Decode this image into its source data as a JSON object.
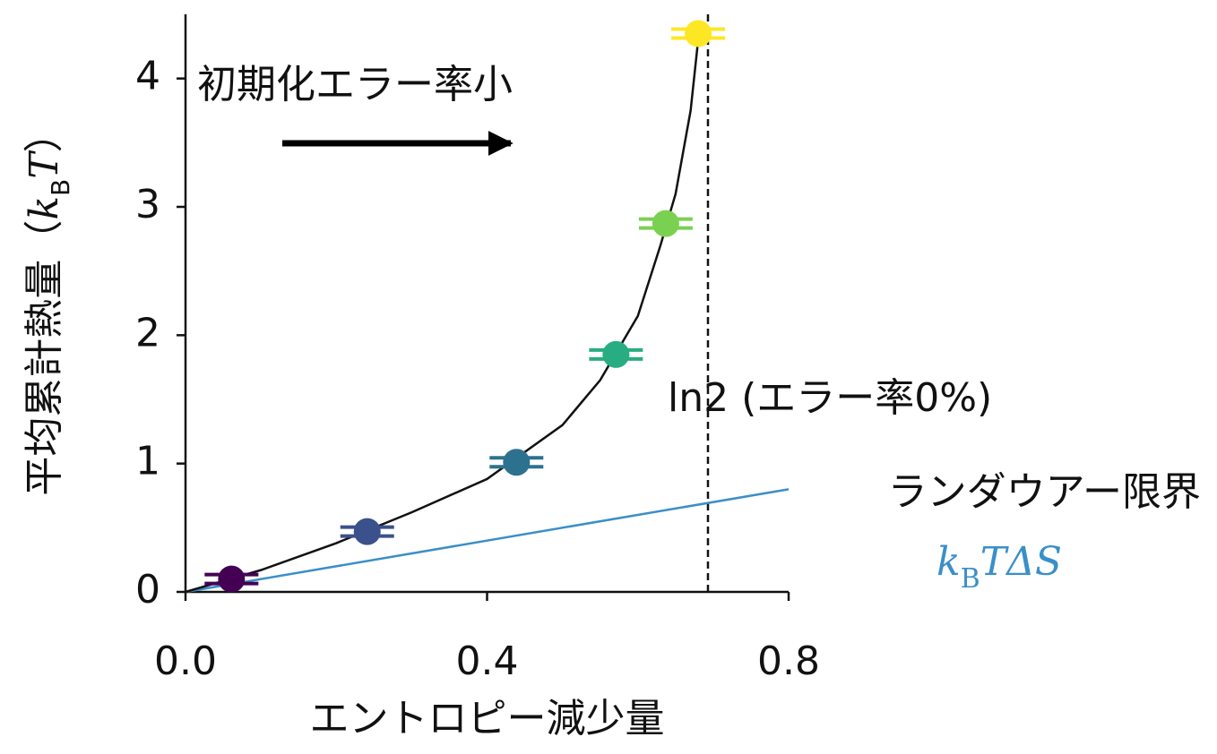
{
  "chart_data": {
    "type": "scatter",
    "xlabel": "エントロピー減少量",
    "ylabel_parts": [
      "平均累計熱量（",
      "k",
      "B",
      "T",
      "）"
    ],
    "xlim": [
      0,
      0.8
    ],
    "ylim": [
      0,
      4.5
    ],
    "xticks": [
      {
        "value": 0,
        "label": "0.0"
      },
      0.4,
      0.8
    ],
    "yticks": [
      0,
      1,
      2,
      3,
      4
    ],
    "points": {
      "x": [
        0.061,
        0.241,
        0.439,
        0.571,
        0.637,
        0.68
      ],
      "values": [
        0.1,
        0.47,
        1.01,
        1.85,
        2.87,
        4.35
      ],
      "yerr": [
        0.035,
        0.035,
        0.035,
        0.035,
        0.035,
        0.035
      ],
      "colors": [
        "#440154",
        "#3b518b",
        "#2c728e",
        "#27ad81",
        "#7ad151",
        "#fde725"
      ]
    },
    "curve": {
      "color": "#111111",
      "x": [
        0,
        0.1,
        0.2,
        0.3,
        0.4,
        0.5,
        0.55,
        0.6,
        0.63,
        0.65,
        0.67,
        0.68,
        0.682
      ],
      "y": [
        0,
        0.17,
        0.38,
        0.62,
        0.88,
        1.3,
        1.65,
        2.15,
        2.7,
        3.1,
        3.75,
        4.3,
        4.45
      ]
    },
    "limit": {
      "color": "#3a8fc8",
      "x": [
        0,
        0.8
      ],
      "y": [
        0,
        0.8
      ],
      "label": "ランダウアー限界",
      "formula_parts": [
        "k",
        "B",
        "TΔS"
      ]
    },
    "vline": {
      "x": 0.693,
      "label": "ln2 (エラー率0%)"
    },
    "annotation": "初期化エラー率小"
  }
}
